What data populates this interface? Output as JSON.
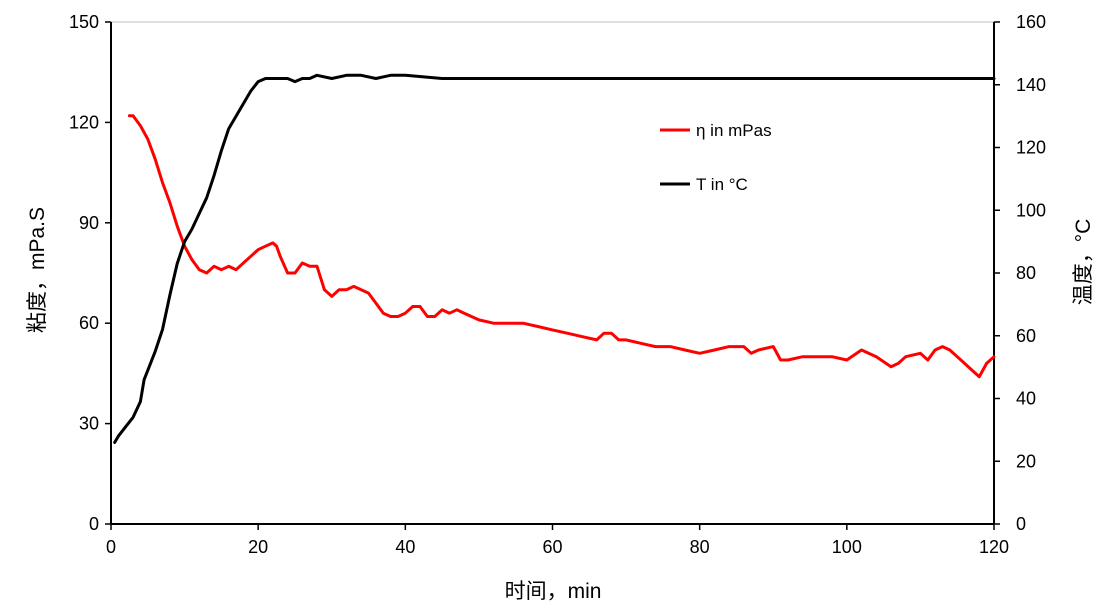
{
  "chart_data": {
    "type": "line",
    "xlabel": "时间，min",
    "ylabel_left": "粘度，mPa.S",
    "ylabel_right": "温度，°C",
    "xlim": [
      0,
      120
    ],
    "ylim_left": [
      0,
      150
    ],
    "ylim_right": [
      0,
      160
    ],
    "x_ticks": [
      0,
      20,
      40,
      60,
      80,
      100,
      120
    ],
    "y_left_ticks": [
      0,
      30,
      60,
      90,
      120,
      150
    ],
    "y_right_ticks": [
      0,
      20,
      40,
      60,
      80,
      100,
      120,
      140,
      160
    ],
    "grid": false,
    "legend_position": "top-right",
    "series": [
      {
        "name": "η in mPas",
        "axis": "left",
        "color": "#ff0000",
        "x": [
          2.5,
          3,
          4,
          5,
          6,
          7,
          8,
          9,
          10,
          11,
          12,
          13,
          14,
          15,
          16,
          17,
          18,
          19,
          20,
          21,
          22,
          22.5,
          23,
          24,
          25,
          26,
          27,
          28,
          29,
          30,
          31,
          32,
          33,
          34,
          35,
          36,
          37,
          38,
          39,
          40,
          41,
          42,
          43,
          44,
          45,
          46,
          47,
          48,
          50,
          52,
          54,
          56,
          58,
          60,
          62,
          64,
          66,
          67,
          68,
          69,
          70,
          72,
          74,
          76,
          78,
          80,
          82,
          84,
          86,
          87,
          88,
          90,
          91,
          92,
          94,
          96,
          98,
          100,
          102,
          104,
          106,
          107,
          108,
          110,
          111,
          112,
          113,
          114,
          115,
          116,
          117,
          118,
          119,
          120
        ],
        "values": [
          122,
          122,
          119,
          115,
          109,
          102,
          96,
          89,
          83,
          79,
          76,
          75,
          77,
          76,
          77,
          76,
          78,
          80,
          82,
          83,
          84,
          83,
          80,
          75,
          75,
          78,
          77,
          77,
          70,
          68,
          70,
          70,
          71,
          70,
          69,
          66,
          63,
          62,
          62,
          63,
          65,
          65,
          62,
          62,
          64,
          63,
          64,
          63,
          61,
          60,
          60,
          60,
          59,
          58,
          57,
          56,
          55,
          57,
          57,
          55,
          55,
          54,
          53,
          53,
          52,
          51,
          52,
          53,
          53,
          51,
          52,
          53,
          49,
          49,
          50,
          50,
          50,
          49,
          52,
          50,
          47,
          48,
          50,
          51,
          49,
          52,
          53,
          52,
          50,
          48,
          46,
          44,
          48,
          50
        ]
      },
      {
        "name": "T in °C",
        "axis": "right",
        "color": "#000000",
        "x": [
          0.5,
          1,
          2,
          3,
          4,
          4.5,
          5,
          6,
          7,
          8,
          9,
          10,
          11,
          12,
          13,
          14,
          15,
          16,
          17,
          18,
          19,
          20,
          21,
          22,
          23,
          24,
          25,
          26,
          27,
          28,
          30,
          32,
          34,
          36,
          38,
          40,
          45,
          50,
          60,
          70,
          80,
          90,
          100,
          110,
          120
        ],
        "values": [
          26,
          28,
          31,
          34,
          39,
          46,
          49,
          55,
          62,
          73,
          83,
          90,
          94,
          99,
          104,
          111,
          119,
          126,
          130,
          134,
          138,
          141,
          142,
          142,
          142,
          142,
          141,
          142,
          142,
          143,
          142,
          143,
          143,
          142,
          143,
          143,
          142,
          142,
          142,
          142,
          142,
          142,
          142,
          142,
          142
        ]
      }
    ]
  }
}
